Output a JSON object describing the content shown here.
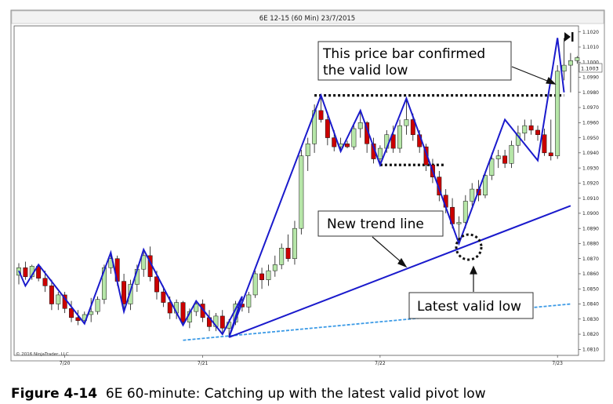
{
  "window_title": "6E 12-15 (60 Min)  23/7/2015",
  "copyright": "© 2016 NinjaTrader, LLC",
  "caption": {
    "figure_label": "Figure 4-14",
    "text": "6E 60-minute: Catching up with the latest valid pivot low"
  },
  "chart_data": {
    "type": "candlestick",
    "title": "6E 12-15 (60 Min)  23/7/2015",
    "y_axis_position": "right",
    "y_ticks": [
      "1.1020",
      "1.1010",
      "1.1000",
      "1.0990",
      "1.0980",
      "1.0970",
      "1.0960",
      "1.0950",
      "1.0940",
      "1.0930",
      "1.0920",
      "1.0910",
      "1.0900",
      "1.0890",
      "1.0880",
      "1.0870",
      "1.0860",
      "1.0850",
      "1.0840",
      "1.0830",
      "1.0820",
      "1.0810"
    ],
    "ylim": [
      1.0806,
      1.1024
    ],
    "x_ticks": [
      {
        "label": "7/20",
        "bar": 7
      },
      {
        "label": "7/21",
        "bar": 28
      },
      {
        "label": "7/22",
        "bar": 55
      },
      {
        "label": "7/23",
        "bar": 82
      }
    ],
    "current_price_label": "1.1003",
    "bull_color": "#b6e6a8",
    "bear_color": "#cc0000",
    "bars": [
      {
        "o": 1.0859,
        "h": 1.0867,
        "l": 1.0853,
        "c": 1.0864
      },
      {
        "o": 1.0864,
        "h": 1.0868,
        "l": 1.0856,
        "c": 1.0858
      },
      {
        "o": 1.0858,
        "h": 1.0866,
        "l": 1.0856,
        "c": 1.0865
      },
      {
        "o": 1.0865,
        "h": 1.0866,
        "l": 1.0855,
        "c": 1.0857
      },
      {
        "o": 1.0857,
        "h": 1.0862,
        "l": 1.0848,
        "c": 1.0852
      },
      {
        "o": 1.0852,
        "h": 1.0856,
        "l": 1.0836,
        "c": 1.084
      },
      {
        "o": 1.084,
        "h": 1.0848,
        "l": 1.0836,
        "c": 1.0846
      },
      {
        "o": 1.0846,
        "h": 1.0848,
        "l": 1.0834,
        "c": 1.0837
      },
      {
        "o": 1.0837,
        "h": 1.0842,
        "l": 1.0828,
        "c": 1.0831
      },
      {
        "o": 1.0831,
        "h": 1.0836,
        "l": 1.0826,
        "c": 1.0829
      },
      {
        "o": 1.0829,
        "h": 1.0835,
        "l": 1.0827,
        "c": 1.0833
      },
      {
        "o": 1.0833,
        "h": 1.0844,
        "l": 1.0828,
        "c": 1.0835
      },
      {
        "o": 1.0835,
        "h": 1.0845,
        "l": 1.0833,
        "c": 1.0843
      },
      {
        "o": 1.0843,
        "h": 1.0866,
        "l": 1.084,
        "c": 1.0864
      },
      {
        "o": 1.0864,
        "h": 1.0874,
        "l": 1.086,
        "c": 1.087
      },
      {
        "o": 1.087,
        "h": 1.0872,
        "l": 1.0852,
        "c": 1.0855
      },
      {
        "o": 1.0855,
        "h": 1.086,
        "l": 1.0835,
        "c": 1.084
      },
      {
        "o": 1.084,
        "h": 1.0856,
        "l": 1.0836,
        "c": 1.0853
      },
      {
        "o": 1.0853,
        "h": 1.0866,
        "l": 1.0848,
        "c": 1.0863
      },
      {
        "o": 1.0863,
        "h": 1.0876,
        "l": 1.0858,
        "c": 1.0872
      },
      {
        "o": 1.0872,
        "h": 1.0878,
        "l": 1.0855,
        "c": 1.0858
      },
      {
        "o": 1.0858,
        "h": 1.0862,
        "l": 1.0843,
        "c": 1.0848
      },
      {
        "o": 1.0848,
        "h": 1.0852,
        "l": 1.0838,
        "c": 1.0841
      },
      {
        "o": 1.0841,
        "h": 1.0845,
        "l": 1.083,
        "c": 1.0834
      },
      {
        "o": 1.0834,
        "h": 1.0843,
        "l": 1.083,
        "c": 1.0841
      },
      {
        "o": 1.0841,
        "h": 1.0842,
        "l": 1.0826,
        "c": 1.0828
      },
      {
        "o": 1.0828,
        "h": 1.0837,
        "l": 1.0824,
        "c": 1.0835
      },
      {
        "o": 1.0835,
        "h": 1.0842,
        "l": 1.0832,
        "c": 1.084
      },
      {
        "o": 1.084,
        "h": 1.0843,
        "l": 1.0828,
        "c": 1.0831
      },
      {
        "o": 1.0831,
        "h": 1.0836,
        "l": 1.0822,
        "c": 1.0825
      },
      {
        "o": 1.0825,
        "h": 1.0834,
        "l": 1.0822,
        "c": 1.0832
      },
      {
        "o": 1.0832,
        "h": 1.0836,
        "l": 1.082,
        "c": 1.0824
      },
      {
        "o": 1.0824,
        "h": 1.083,
        "l": 1.0818,
        "c": 1.0828
      },
      {
        "o": 1.0828,
        "h": 1.0842,
        "l": 1.0826,
        "c": 1.084
      },
      {
        "o": 1.084,
        "h": 1.0845,
        "l": 1.0835,
        "c": 1.0838
      },
      {
        "o": 1.0838,
        "h": 1.0848,
        "l": 1.0834,
        "c": 1.0846
      },
      {
        "o": 1.0846,
        "h": 1.0862,
        "l": 1.0844,
        "c": 1.086
      },
      {
        "o": 1.086,
        "h": 1.0864,
        "l": 1.085,
        "c": 1.0856
      },
      {
        "o": 1.0856,
        "h": 1.0866,
        "l": 1.0852,
        "c": 1.0862
      },
      {
        "o": 1.0862,
        "h": 1.0872,
        "l": 1.0858,
        "c": 1.0866
      },
      {
        "o": 1.0866,
        "h": 1.088,
        "l": 1.0863,
        "c": 1.0877
      },
      {
        "o": 1.0877,
        "h": 1.0886,
        "l": 1.0868,
        "c": 1.087
      },
      {
        "o": 1.087,
        "h": 1.0895,
        "l": 1.0866,
        "c": 1.089
      },
      {
        "o": 1.089,
        "h": 1.0942,
        "l": 1.0886,
        "c": 1.0938
      },
      {
        "o": 1.0938,
        "h": 1.095,
        "l": 1.0928,
        "c": 1.0946
      },
      {
        "o": 1.0946,
        "h": 1.0972,
        "l": 1.094,
        "c": 1.0968
      },
      {
        "o": 1.0968,
        "h": 1.0978,
        "l": 1.096,
        "c": 1.0962
      },
      {
        "o": 1.0962,
        "h": 1.0967,
        "l": 1.0945,
        "c": 1.095
      },
      {
        "o": 1.095,
        "h": 1.0955,
        "l": 1.0941,
        "c": 1.0944
      },
      {
        "o": 1.0944,
        "h": 1.095,
        "l": 1.0942,
        "c": 1.0946
      },
      {
        "o": 1.0946,
        "h": 1.0948,
        "l": 1.0943,
        "c": 1.0944
      },
      {
        "o": 1.0944,
        "h": 1.096,
        "l": 1.0942,
        "c": 1.0956
      },
      {
        "o": 1.0956,
        "h": 1.0968,
        "l": 1.095,
        "c": 1.096
      },
      {
        "o": 1.096,
        "h": 1.0961,
        "l": 1.094,
        "c": 1.0946
      },
      {
        "o": 1.0946,
        "h": 1.095,
        "l": 1.0933,
        "c": 1.0936
      },
      {
        "o": 1.0936,
        "h": 1.0945,
        "l": 1.0932,
        "c": 1.0943
      },
      {
        "o": 1.0943,
        "h": 1.0955,
        "l": 1.094,
        "c": 1.0952
      },
      {
        "o": 1.0952,
        "h": 1.0958,
        "l": 1.094,
        "c": 1.0943
      },
      {
        "o": 1.0943,
        "h": 1.0962,
        "l": 1.094,
        "c": 1.0958
      },
      {
        "o": 1.0958,
        "h": 1.0976,
        "l": 1.0952,
        "c": 1.0962
      },
      {
        "o": 1.0962,
        "h": 1.0966,
        "l": 1.0948,
        "c": 1.0952
      },
      {
        "o": 1.0952,
        "h": 1.0955,
        "l": 1.094,
        "c": 1.0944
      },
      {
        "o": 1.0944,
        "h": 1.0946,
        "l": 1.0928,
        "c": 1.0932
      },
      {
        "o": 1.0932,
        "h": 1.0936,
        "l": 1.092,
        "c": 1.0924
      },
      {
        "o": 1.0924,
        "h": 1.0928,
        "l": 1.0908,
        "c": 1.0912
      },
      {
        "o": 1.0912,
        "h": 1.0916,
        "l": 1.09,
        "c": 1.0904
      },
      {
        "o": 1.0904,
        "h": 1.091,
        "l": 1.089,
        "c": 1.0893
      },
      {
        "o": 1.0893,
        "h": 1.0898,
        "l": 1.088,
        "c": 1.0894
      },
      {
        "o": 1.0894,
        "h": 1.0912,
        "l": 1.089,
        "c": 1.0908
      },
      {
        "o": 1.0908,
        "h": 1.092,
        "l": 1.0905,
        "c": 1.0916
      },
      {
        "o": 1.0916,
        "h": 1.0922,
        "l": 1.0908,
        "c": 1.0912
      },
      {
        "o": 1.0912,
        "h": 1.0928,
        "l": 1.091,
        "c": 1.0925
      },
      {
        "o": 1.0925,
        "h": 1.094,
        "l": 1.0922,
        "c": 1.0936
      },
      {
        "o": 1.0936,
        "h": 1.0942,
        "l": 1.093,
        "c": 1.0938
      },
      {
        "o": 1.0938,
        "h": 1.0942,
        "l": 1.093,
        "c": 1.0933
      },
      {
        "o": 1.0933,
        "h": 1.0948,
        "l": 1.093,
        "c": 1.0945
      },
      {
        "o": 1.0945,
        "h": 1.0958,
        "l": 1.094,
        "c": 1.0953
      },
      {
        "o": 1.0953,
        "h": 1.0962,
        "l": 1.0948,
        "c": 1.0958
      },
      {
        "o": 1.0958,
        "h": 1.0962,
        "l": 1.0952,
        "c": 1.0955
      },
      {
        "o": 1.0955,
        "h": 1.0958,
        "l": 1.0948,
        "c": 1.0952
      },
      {
        "o": 1.0952,
        "h": 1.0956,
        "l": 1.0938,
        "c": 1.094
      },
      {
        "o": 1.094,
        "h": 1.0962,
        "l": 1.0935,
        "c": 1.0938
      },
      {
        "o": 1.0938,
        "h": 1.0998,
        "l": 1.0936,
        "c": 1.0994
      },
      {
        "o": 1.0994,
        "h": 1.1016,
        "l": 1.0988,
        "c": 1.0998
      },
      {
        "o": 1.0998,
        "h": 1.1006,
        "l": 1.098,
        "c": 1.1001
      },
      {
        "o": 1.1001,
        "h": 1.1004,
        "l": 1.0999,
        "c": 1.1003
      }
    ],
    "zigzag": [
      {
        "bar": 0,
        "price": 1.0862
      },
      {
        "bar": 1,
        "price": 1.0852
      },
      {
        "bar": 3,
        "price": 1.0866
      },
      {
        "bar": 10,
        "price": 1.0827
      },
      {
        "bar": 14,
        "price": 1.0874
      },
      {
        "bar": 16,
        "price": 1.0835
      },
      {
        "bar": 19,
        "price": 1.0876
      },
      {
        "bar": 25,
        "price": 1.0826
      },
      {
        "bar": 27,
        "price": 1.0842
      },
      {
        "bar": 31,
        "price": 1.082
      },
      {
        "bar": 34,
        "price": 1.0845
      },
      {
        "bar": 32,
        "price": 1.0818
      },
      {
        "bar": 46,
        "price": 1.0978
      },
      {
        "bar": 49,
        "price": 1.0941
      },
      {
        "bar": 52,
        "price": 1.0968
      },
      {
        "bar": 55,
        "price": 1.0932
      },
      {
        "bar": 59,
        "price": 1.0976
      },
      {
        "bar": 67,
        "price": 1.088
      },
      {
        "bar": 74,
        "price": 1.0962
      },
      {
        "bar": 79,
        "price": 1.0935
      },
      {
        "bar": 82,
        "price": 1.1016
      },
      {
        "bar": 83,
        "price": 1.098
      }
    ],
    "trend_lines": [
      {
        "name": "old trend line",
        "from": {
          "bar": 25,
          "price": 1.0816
        },
        "to": {
          "bar": 84,
          "price": 1.084
        },
        "style": "dashed",
        "color": "#3b9ae6"
      },
      {
        "name": "new trend line",
        "from": {
          "bar": 32,
          "price": 1.0818
        },
        "to": {
          "bar": 84,
          "price": 1.0905
        },
        "style": "solid",
        "color": "#1a1acc"
      }
    ],
    "dotted_levels": [
      {
        "from_bar": 45,
        "to_bar": 83,
        "price": 1.0978
      },
      {
        "from_bar": 55,
        "to_bar": 65,
        "price": 1.0932
      }
    ],
    "annotations": [
      {
        "text": "This price bar confirmed\nthe valid low"
      },
      {
        "text": "New trend line"
      },
      {
        "text": "Latest valid low"
      }
    ]
  }
}
